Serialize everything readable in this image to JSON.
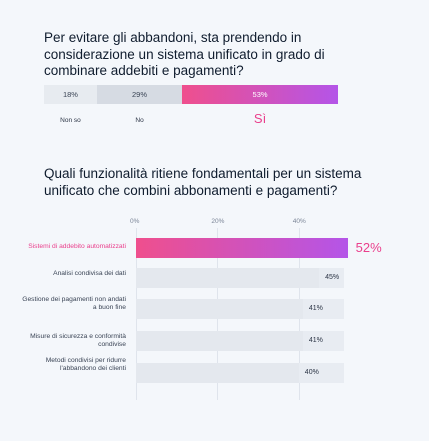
{
  "q1": {
    "title": "Per evitare gli abbandoni, sta prendendo in considerazione un sistema unificato in grado di combinare addebiti e pagamenti?"
  },
  "q2": {
    "title": "Quali funzionalità ritiene fondamentali per un sistema unificato che combini abbonamenti e pagamenti?"
  },
  "colors": {
    "gray_light": "#e7ebf0",
    "gray_mid": "#d6dbe3",
    "highlight_start": "#ef4f8d",
    "highlight_end": "#b455e8",
    "highlight_text": "#ea3f8c",
    "track": "#e8ecf2"
  },
  "chart_data": [
    {
      "type": "bar",
      "stacked": true,
      "orientation": "horizontal",
      "categories": [
        "Non so",
        "No",
        "Sì"
      ],
      "values": [
        18,
        29,
        53
      ],
      "value_labels": [
        "18%",
        "29%",
        "53%"
      ],
      "highlight": "Sì"
    },
    {
      "type": "bar",
      "orientation": "horizontal",
      "categories": [
        "Sistemi di addebito automatizzati",
        "Analisi condivisa dei dati",
        "Gestione dei pagamenti non andati a buon fine",
        "Misure di sicurezza e conformità condivise",
        "Metodi condivisi per ridurre l'abbandono dei clienti"
      ],
      "values": [
        52,
        45,
        41,
        41,
        40
      ],
      "value_labels": [
        "52%",
        "45%",
        "41%",
        "41%",
        "40%"
      ],
      "highlight": "Sistemi di addebito automatizzati",
      "xlim": [
        0,
        50
      ],
      "xticks": [
        "0%",
        "20%",
        "40%"
      ],
      "grid": true
    }
  ]
}
